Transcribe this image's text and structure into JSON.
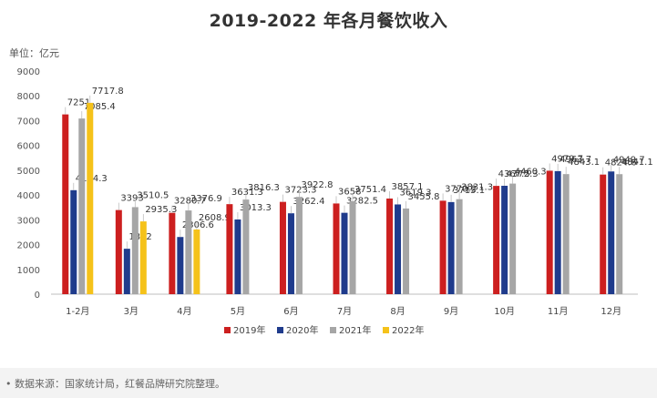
{
  "title": "2019-2022 年各月餐饮收入",
  "unit_label": "单位：亿元",
  "source_note": "• 数据来源：国家统计局，红餐品牌研究院整理。",
  "chart_data": {
    "type": "bar",
    "categories": [
      "1-2月",
      "3月",
      "4月",
      "5月",
      "6月",
      "7月",
      "8月",
      "9月",
      "10月",
      "11月",
      "12月"
    ],
    "ylim": [
      0,
      9000
    ],
    "yticks": [
      0,
      1000,
      2000,
      3000,
      4000,
      5000,
      6000,
      7000,
      8000,
      9000
    ],
    "grid": false,
    "legend_position": "bottom",
    "series": [
      {
        "name": "2019年",
        "color": "#cc1f1f",
        "values": [
          7251,
          3393,
          3280.7,
          3631.3,
          3723.3,
          3658,
          3857.1,
          3770.2,
          4367.5,
          4979.7,
          4824.6
        ],
        "labels": [
          "7251",
          "3393",
          "3280.7",
          "3631.3",
          "3723.3",
          "3658",
          "3857.1",
          "3770.2",
          "4367.5",
          "4979.7",
          "4824.6"
        ]
      },
      {
        "name": "2020年",
        "color": "#1f3b8c",
        "values": [
          4194.3,
          1832,
          2306.6,
          3013.3,
          3262.4,
          3282.5,
          3619.3,
          3715.1,
          4372.3,
          4963.7,
          4949.7
        ],
        "labels": [
          "4194.3",
          "1832",
          "2306.6",
          "3013.3",
          "3262.4",
          "3282.5",
          "3619.3",
          "3715.1",
          "4372.3",
          "4963.7",
          "4949.7"
        ]
      },
      {
        "name": "2021年",
        "color": "#a6a6a6",
        "values": [
          7085.4,
          3510.5,
          3376.9,
          3816.3,
          3922.8,
          3751.4,
          3455.8,
          3831.3,
          4460.3,
          4843.1,
          4841.1
        ],
        "labels": [
          "7085.4",
          "3510.5",
          "3376.9",
          "3816.3",
          "3922.8",
          "3751.4",
          "3455.8",
          "3831.3",
          "4460.3",
          "4843.1",
          "4841.1"
        ]
      },
      {
        "name": "2022年",
        "color": "#f5c21a",
        "values": [
          7717.8,
          2935.3,
          2608.9,
          null,
          null,
          null,
          null,
          null,
          null,
          null,
          null
        ],
        "labels": [
          "7717.8",
          "2935.3",
          "2608.9",
          null,
          null,
          null,
          null,
          null,
          null,
          null,
          null
        ]
      }
    ]
  }
}
